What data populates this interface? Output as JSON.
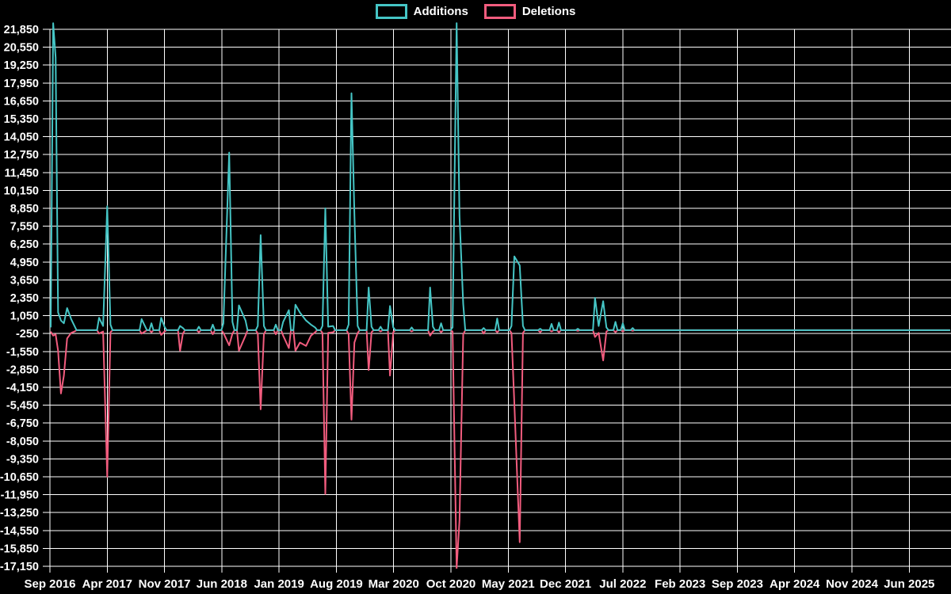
{
  "legend": {
    "items": [
      {
        "label": "Additions",
        "color": "#45c5c5"
      },
      {
        "label": "Deletions",
        "color": "#f25c7e"
      }
    ]
  },
  "chart_data": {
    "type": "line",
    "title": "",
    "xlabel": "",
    "ylabel": "",
    "background_color": "#000000",
    "grid": true,
    "grid_color": "#ffffff",
    "text_color": "#ffffff",
    "legend_position": "top-center",
    "x_axis": {
      "start": "Sep 2016",
      "tick_interval_months": 7,
      "end_months_after_start": 110,
      "tick_labels": [
        "Sep 2016",
        "Apr 2017",
        "Nov 2017",
        "Jun 2018",
        "Jan 2019",
        "Aug 2019",
        "Mar 2020",
        "Oct 2020",
        "May 2021",
        "Dec 2021",
        "Jul 2022",
        "Feb 2023",
        "Sep 2023",
        "Apr 2024",
        "Nov 2024",
        "Jun 2025"
      ]
    },
    "y_axis": {
      "max": 21850,
      "min": -17150,
      "step": 1300,
      "tick_labels": [
        "21,850",
        "20,550",
        "19,250",
        "17,950",
        "16,650",
        "15,350",
        "14,050",
        "12,750",
        "11,450",
        "10,150",
        "8,850",
        "7,550",
        "6,250",
        "4,950",
        "3,650",
        "2,350",
        "1,050",
        "-250",
        "-1,550",
        "-2,850",
        "-4,150",
        "-5,450",
        "-6,750",
        "-8,050",
        "-9,350",
        "-10,650",
        "-11,950",
        "-13,250",
        "-14,550",
        "-15,850",
        "-17,150"
      ]
    },
    "series": [
      {
        "name": "Additions",
        "color": "#45c5c5",
        "value_index": 1
      },
      {
        "name": "Deletions",
        "color": "#f25c7e",
        "value_index": 2
      }
    ],
    "point_format": [
      "months_since_sep_2016",
      "additions",
      "deletions"
    ],
    "baseline_gap_threshold_months": 0.8,
    "points": [
      [
        0.1,
        200,
        -100
      ],
      [
        0.4,
        22300,
        -400
      ],
      [
        0.7,
        19800,
        -300
      ],
      [
        1.0,
        1300,
        -1500
      ],
      [
        1.35,
        700,
        -4600
      ],
      [
        1.7,
        500,
        -3300
      ],
      [
        2.1,
        1600,
        -600
      ],
      [
        2.6,
        800,
        -200
      ],
      [
        3.0,
        300,
        -100
      ],
      [
        6.0,
        900,
        -250
      ],
      [
        6.5,
        300,
        -100
      ],
      [
        7.0,
        9000,
        -10650
      ],
      [
        7.4,
        400,
        -150
      ],
      [
        11.2,
        800,
        -250
      ],
      [
        11.6,
        300,
        -100
      ],
      [
        12.4,
        500,
        -150
      ],
      [
        13.6,
        900,
        -350
      ],
      [
        14.0,
        250,
        -100
      ],
      [
        15.9,
        300,
        -1500
      ],
      [
        16.25,
        150,
        -250
      ],
      [
        18.2,
        250,
        -150
      ],
      [
        19.9,
        400,
        -300
      ],
      [
        21.2,
        500,
        -200
      ],
      [
        21.9,
        12900,
        -1100
      ],
      [
        22.3,
        600,
        -250
      ],
      [
        23.1,
        1800,
        -1500
      ],
      [
        23.9,
        700,
        -400
      ],
      [
        25.4,
        300,
        -250
      ],
      [
        25.75,
        6900,
        -5750
      ],
      [
        26.15,
        300,
        -300
      ],
      [
        27.6,
        400,
        -300
      ],
      [
        28.5,
        600,
        -400
      ],
      [
        29.2,
        1450,
        -1300
      ],
      [
        30.0,
        1850,
        -1500
      ],
      [
        30.55,
        1270,
        -900
      ],
      [
        31.3,
        700,
        -1150
      ],
      [
        31.9,
        400,
        -400
      ],
      [
        32.4,
        200,
        -150
      ],
      [
        33.3,
        300,
        -200
      ],
      [
        33.65,
        8850,
        -11900
      ],
      [
        34.0,
        250,
        -200
      ],
      [
        34.6,
        300,
        -150
      ],
      [
        36.5,
        400,
        -300
      ],
      [
        36.85,
        17200,
        -6500
      ],
      [
        37.2,
        8400,
        -900
      ],
      [
        37.6,
        300,
        -200
      ],
      [
        38.95,
        3100,
        -2900
      ],
      [
        39.3,
        250,
        -150
      ],
      [
        40.4,
        250,
        -100
      ],
      [
        41.55,
        1750,
        -3300
      ],
      [
        41.95,
        200,
        -150
      ],
      [
        44.2,
        200,
        -100
      ],
      [
        46.45,
        3100,
        -400
      ],
      [
        46.8,
        250,
        -100
      ],
      [
        47.8,
        500,
        -150
      ],
      [
        49.2,
        200,
        -100
      ],
      [
        49.7,
        22300,
        -17300
      ],
      [
        50.05,
        8300,
        -13800
      ],
      [
        50.5,
        1900,
        -300
      ],
      [
        53.0,
        150,
        -250
      ],
      [
        54.65,
        850,
        -150
      ],
      [
        56.4,
        300,
        -200
      ],
      [
        56.75,
        5350,
        -5300
      ],
      [
        57.4,
        4700,
        -15400
      ],
      [
        57.8,
        300,
        -200
      ],
      [
        59.9,
        100,
        -150
      ],
      [
        61.3,
        450,
        -100
      ],
      [
        62.2,
        550,
        -150
      ],
      [
        64.5,
        100,
        -50
      ],
      [
        66.6,
        2350,
        -500
      ],
      [
        67.05,
        300,
        -200
      ],
      [
        67.6,
        2100,
        -2200
      ],
      [
        68.0,
        200,
        -100
      ],
      [
        69.1,
        600,
        -150
      ],
      [
        70.0,
        500,
        -100
      ],
      [
        71.2,
        150,
        -50
      ],
      [
        110.0,
        0,
        0
      ]
    ]
  }
}
